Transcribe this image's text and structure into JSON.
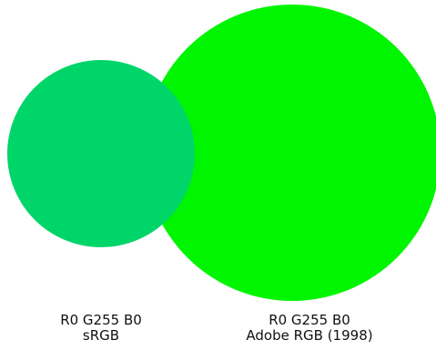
{
  "colors": {
    "background": "#ffffff",
    "srgb_green": "#00d56a",
    "adobe_green": "#00f500"
  },
  "swatches": [
    {
      "rgb_label": "R0 G255 B0",
      "space_label": "sRGB"
    },
    {
      "rgb_label": "R0 G255 B0",
      "space_label": "Adobe RGB (1998)"
    }
  ]
}
